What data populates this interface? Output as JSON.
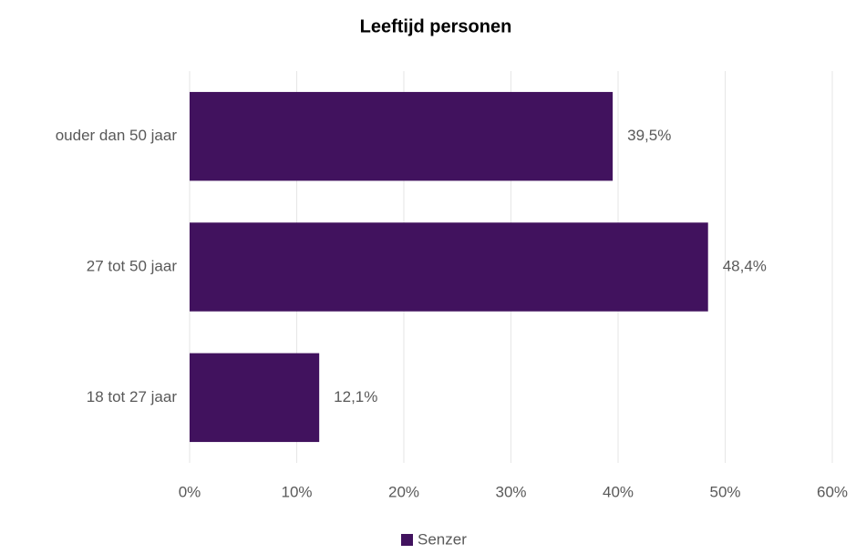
{
  "chart_data": {
    "type": "barh",
    "title": "Leeftijd personen",
    "categories": [
      "ouder dan 50 jaar",
      "27 tot 50 jaar",
      "18 tot 27 jaar"
    ],
    "series": [
      {
        "name": "Senzer",
        "color": "#41125e",
        "values": [
          39.5,
          48.4,
          12.1
        ],
        "value_labels": [
          "39,5%",
          "48,4%",
          "12,1%"
        ]
      }
    ],
    "xlim": [
      0,
      60
    ],
    "xticks": [
      {
        "value": 0,
        "label": "0%"
      },
      {
        "value": 10,
        "label": "10%"
      },
      {
        "value": 20,
        "label": "20%"
      },
      {
        "value": 30,
        "label": "30%"
      },
      {
        "value": 40,
        "label": "40%"
      },
      {
        "value": 50,
        "label": "50%"
      },
      {
        "value": 60,
        "label": "60%"
      }
    ],
    "grid": true,
    "legend": "bottom"
  }
}
